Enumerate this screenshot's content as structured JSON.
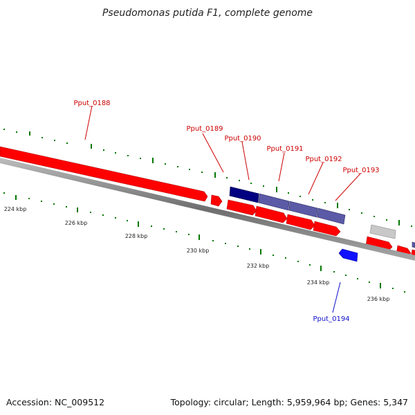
{
  "title": "Pseudomonas putida F1, complete genome",
  "footer": {
    "accession": "Accession: NC_009512",
    "summary": "Topology: circular; Length: 5,959,964 bp; Genes: 5,347"
  },
  "colors": {
    "forward_gene": "#ff0000",
    "reverse_gene": "#1010ff",
    "operon_dark": "#000080",
    "operon_mid": "#4d4d9a",
    "unknown_gene": "#c8c8c8",
    "tick": "#007700",
    "backbone": "#808080"
  },
  "ruler": {
    "labels": [
      "224 kbp",
      "226 kbp",
      "228 kbp",
      "230 kbp",
      "232 kbp",
      "234 kbp",
      "236 kbp"
    ]
  },
  "gene_labels": {
    "pput_0188": "Pput_0188",
    "pput_0189": "Pput_0189",
    "pput_0190": "Pput_0190",
    "pput_0191": "Pput_0191",
    "pput_0192": "Pput_0192",
    "pput_0193": "Pput_0193",
    "pput_0194": "Pput_0194"
  }
}
